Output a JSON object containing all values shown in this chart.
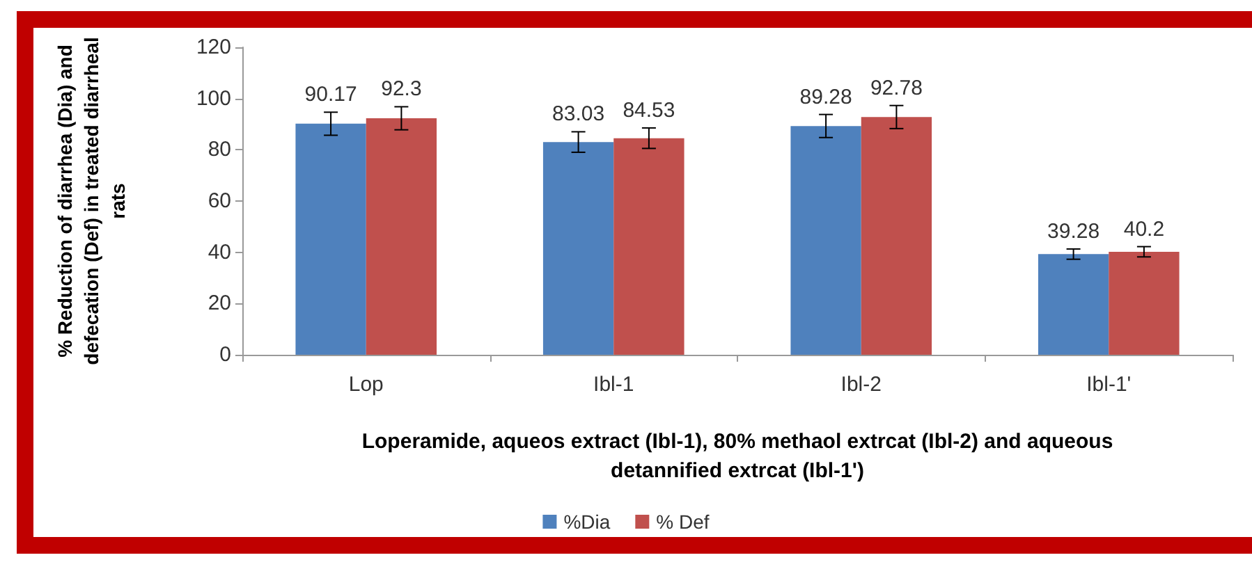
{
  "chart_data": {
    "type": "bar",
    "categories": [
      "Lop",
      "Ibl-1",
      "Ibl-2",
      "Ibl-1'"
    ],
    "series": [
      {
        "name": "%Dia",
        "color": "#4f81bd",
        "values": [
          90.17,
          83.03,
          89.28,
          39.28
        ],
        "errors": [
          4.5,
          4,
          4.5,
          2
        ]
      },
      {
        "name": "% Def",
        "color": "#c0504d",
        "values": [
          92.3,
          84.53,
          92.78,
          40.2
        ],
        "errors": [
          4.5,
          4,
          4.5,
          2
        ]
      }
    ],
    "xlabel": "Loperamide, aqueos extract (Ibl-1), 80% methaol extrcat (Ibl-2) and aqueous detannified extrcat (Ibl-1')",
    "ylabel": "% Reduction of diarrhea (Dia) and defecation (Def) in treated diarrheal rats",
    "ylim": [
      0,
      120
    ],
    "yticks": [
      0,
      20,
      40,
      60,
      80,
      100,
      120
    ],
    "data_labels": true,
    "grid": false,
    "legend": "bottom"
  }
}
